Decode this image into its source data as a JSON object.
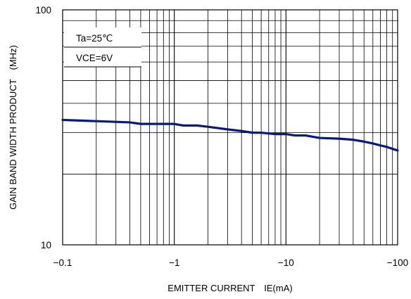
{
  "chart_data": {
    "type": "line",
    "title": "",
    "xlabel": "EMITTER CURRENT　IE(mA)",
    "ylabel": "GAIN BAND WIDTH PRODUCT　(MHz)",
    "x_scale": "log",
    "y_scale": "log",
    "xlim": [
      0.1,
      100
    ],
    "ylim": [
      10,
      100
    ],
    "x_ticks": [
      {
        "value": 0.1,
        "label": "−0.1"
      },
      {
        "value": 1,
        "label": "−1"
      },
      {
        "value": 10,
        "label": "−10"
      },
      {
        "value": 100,
        "label": "−100"
      }
    ],
    "y_ticks": [
      {
        "value": 10,
        "label": "10"
      },
      {
        "value": 100,
        "label": "100"
      }
    ],
    "grid": true,
    "line_color": "#0a1a78",
    "annotations": [
      "Ta=25℃",
      "VCE=6V"
    ],
    "series": [
      {
        "x": [
          0.1,
          0.2,
          0.4,
          0.5,
          0.7,
          1.0,
          1.2,
          1.6,
          2.0,
          3.0,
          4.0,
          5.0,
          6.0,
          8.0,
          10,
          12,
          15,
          20,
          30,
          40,
          50,
          60,
          70,
          80,
          100
        ],
        "y": [
          34.0,
          33.6,
          33.2,
          32.7,
          32.7,
          32.7,
          32.2,
          32.2,
          31.8,
          31.0,
          30.5,
          30.0,
          30.0,
          29.6,
          29.6,
          29.2,
          29.2,
          28.5,
          28.3,
          28.0,
          27.5,
          27.0,
          26.5,
          26.1,
          25.2
        ]
      }
    ]
  }
}
